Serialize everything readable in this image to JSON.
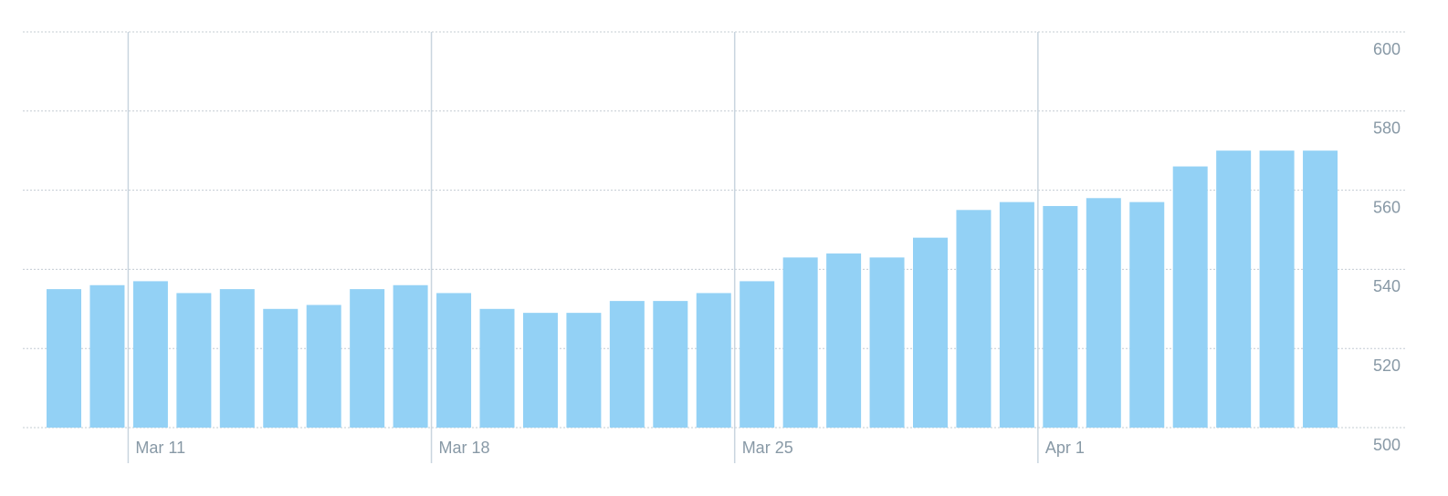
{
  "chart_data": {
    "type": "bar",
    "categories": [
      null,
      null,
      "Mar 11",
      null,
      null,
      null,
      null,
      null,
      null,
      "Mar 18",
      null,
      null,
      null,
      null,
      null,
      null,
      "Mar 25",
      null,
      null,
      null,
      null,
      null,
      null,
      "Apr 1",
      null,
      null,
      null,
      null,
      null,
      null
    ],
    "values": [
      535,
      536,
      537,
      534,
      535,
      530,
      531,
      535,
      536,
      534,
      530,
      529,
      529,
      532,
      532,
      534,
      537,
      543,
      544,
      543,
      548,
      555,
      557,
      556,
      558,
      557,
      566,
      570,
      570,
      570
    ],
    "color": "#93d1f5",
    "ylim": [
      500,
      600
    ],
    "yticks": [
      500,
      520,
      540,
      560,
      580,
      600
    ],
    "grid": true
  }
}
